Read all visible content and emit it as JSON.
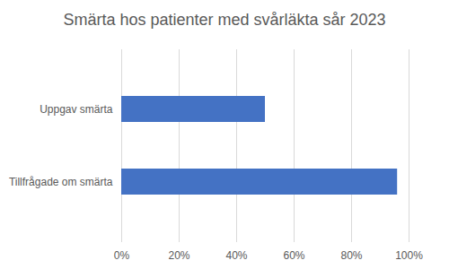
{
  "chart_data": {
    "type": "bar",
    "orientation": "horizontal",
    "title": "Smärta hos patienter med svårläkta sår 2023",
    "categories": [
      "Uppgav smärta",
      "Tillfrågade om smärta"
    ],
    "values": [
      50,
      96
    ],
    "color": "#4472c4",
    "xlim": [
      0,
      100
    ],
    "xticks": [
      {
        "value": 0,
        "label": "0%"
      },
      {
        "value": 20,
        "label": "20%"
      },
      {
        "value": 40,
        "label": "40%"
      },
      {
        "value": 60,
        "label": "60%"
      },
      {
        "value": 80,
        "label": "80%"
      },
      {
        "value": 100,
        "label": "100%"
      }
    ],
    "grid": true
  }
}
